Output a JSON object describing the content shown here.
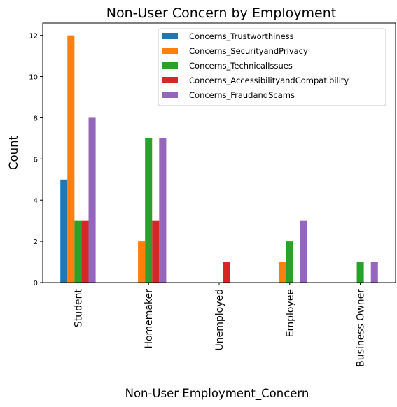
{
  "chart_data": {
    "type": "bar",
    "title": "Non-User Concern by Employment",
    "xlabel": "Non-User Employment_Concern",
    "ylabel": "Count",
    "categories": [
      "Student",
      "Homemaker",
      "Unemployed",
      "Employee",
      "Business Owner"
    ],
    "series": [
      {
        "name": "Concerns_Trustworthiness",
        "color": "#1f77b4",
        "values": [
          5,
          0,
          0,
          0,
          0
        ]
      },
      {
        "name": "Concerns_SecurityandPrivacy",
        "color": "#ff7f0e",
        "values": [
          12,
          2,
          0,
          1,
          0
        ]
      },
      {
        "name": "Concerns_TechnicalIssues",
        "color": "#2ca02c",
        "values": [
          3,
          7,
          0,
          2,
          1
        ]
      },
      {
        "name": "Concerns_AccessibilityandCompatibility",
        "color": "#d62728",
        "values": [
          3,
          3,
          1,
          0,
          0
        ]
      },
      {
        "name": "Concerns_FraudandScams",
        "color": "#9467bd",
        "values": [
          8,
          7,
          0,
          3,
          1
        ]
      }
    ],
    "ylim": [
      0,
      12.6
    ],
    "yticks": [
      0,
      2,
      4,
      6,
      8,
      10,
      12
    ],
    "grid": false,
    "legend_position": "top-right"
  }
}
